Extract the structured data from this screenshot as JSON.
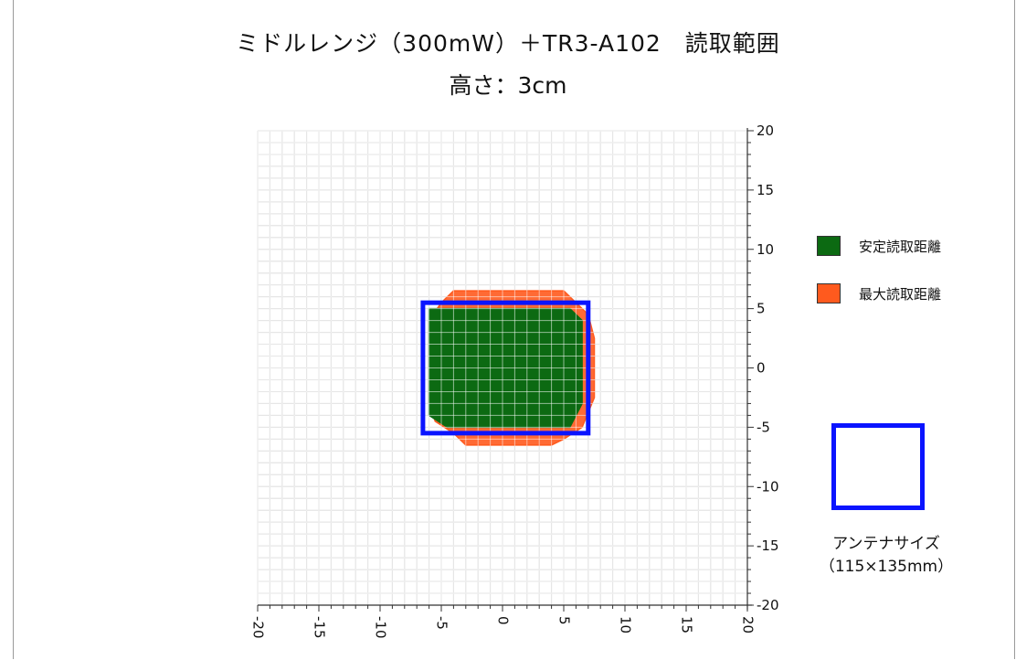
{
  "title": "ミドルレンジ（300mW）＋TR3-A102　読取範囲",
  "subtitle": "高さ：3cm",
  "colors": {
    "stable_fill": "#0c6a12",
    "max_fill": "#ff5a1e",
    "antenna": "#0a14ff",
    "grid": "#c8c8c8"
  },
  "legend": [
    {
      "label": "安定読取距離",
      "color": "#0c6a12"
    },
    {
      "label": "最大読取距離",
      "color": "#ff5a1e"
    }
  ],
  "antenna_note": {
    "line1": "アンテナサイズ",
    "line2": "（115×135mm）"
  },
  "chart_data": {
    "type": "area",
    "xlim": [
      -20,
      20
    ],
    "ylim": [
      -20,
      20
    ],
    "grid": true,
    "legend_position": "right",
    "x_ticks": [
      "-20",
      "-15",
      "-10",
      "-5",
      "0",
      "5",
      "10",
      "15",
      "20"
    ],
    "y_ticks": [
      "20",
      "15",
      "10",
      "5",
      "0",
      "-5",
      "-10",
      "-15",
      "-20"
    ],
    "series": [
      {
        "name": "最大読取距離",
        "type": "polygon",
        "points": [
          [
            -4,
            6.5
          ],
          [
            5,
            6.5
          ],
          [
            6,
            5.5
          ],
          [
            7,
            4.5
          ],
          [
            7.5,
            2.5
          ],
          [
            7.5,
            -2.5
          ],
          [
            6.5,
            -5
          ],
          [
            5,
            -6
          ],
          [
            4,
            -6.5
          ],
          [
            -3,
            -6.5
          ],
          [
            -4,
            -5.5
          ],
          [
            -5.5,
            -4.5
          ],
          [
            -6,
            -3
          ],
          [
            -6,
            4
          ],
          [
            -5,
            5.5
          ]
        ]
      },
      {
        "name": "安定読取距離",
        "type": "polygon",
        "points": [
          [
            -6,
            5
          ],
          [
            5.5,
            5
          ],
          [
            6.5,
            4
          ],
          [
            6.5,
            -3
          ],
          [
            5.5,
            -5
          ],
          [
            -4.5,
            -5
          ],
          [
            -6,
            -4
          ]
        ]
      },
      {
        "name": "アンテナサイズ",
        "type": "rectangle",
        "x": [
          -6.5,
          7
        ],
        "y": [
          -5.5,
          5.5
        ]
      }
    ]
  }
}
